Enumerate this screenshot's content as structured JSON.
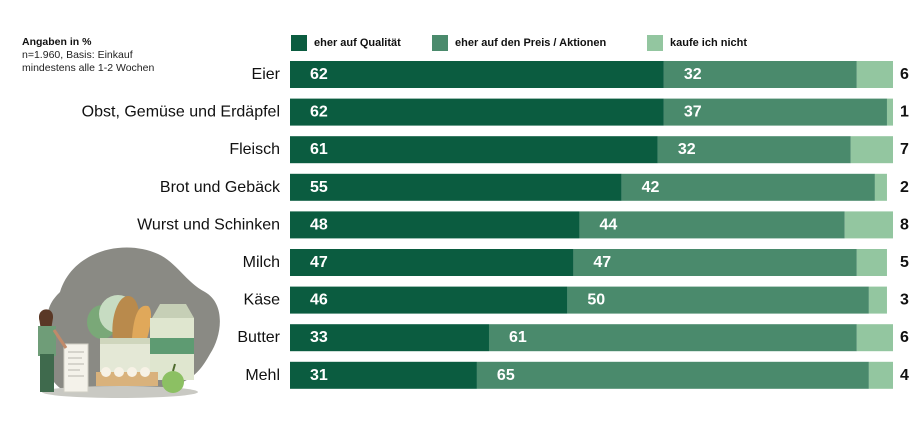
{
  "header": {
    "unit_label": "Angaben in %",
    "base_line_1": "n=1.960, Basis: Einkauf",
    "base_line_2": "mindestens alle 1-2 Wochen"
  },
  "colors": {
    "quality": "#0b5c40",
    "price": "#4a8a6c",
    "not_buying": "#93c6a0",
    "text_light": "#ffffff",
    "text_dark": "#111111"
  },
  "chart_data": {
    "type": "bar",
    "orientation": "horizontal",
    "stacked": true,
    "categories": [
      "Eier",
      "Obst, Gemüse und Erdäpfel",
      "Fleisch",
      "Brot und Gebäck",
      "Wurst und Schinken",
      "Milch",
      "Käse",
      "Butter",
      "Mehl"
    ],
    "series": [
      {
        "name": "eher auf Qualität",
        "values": [
          62,
          62,
          61,
          55,
          48,
          47,
          46,
          33,
          31
        ]
      },
      {
        "name": "eher auf den Preis / Aktionen",
        "values": [
          32,
          37,
          32,
          42,
          44,
          47,
          50,
          61,
          65
        ]
      },
      {
        "name": "kaufe ich nicht",
        "values": [
          6,
          1,
          7,
          2,
          8,
          5,
          3,
          6,
          4
        ]
      }
    ],
    "xlim": [
      0,
      100
    ],
    "legend_position": "top",
    "grid": false,
    "title": "",
    "xlabel": "",
    "ylabel": ""
  }
}
